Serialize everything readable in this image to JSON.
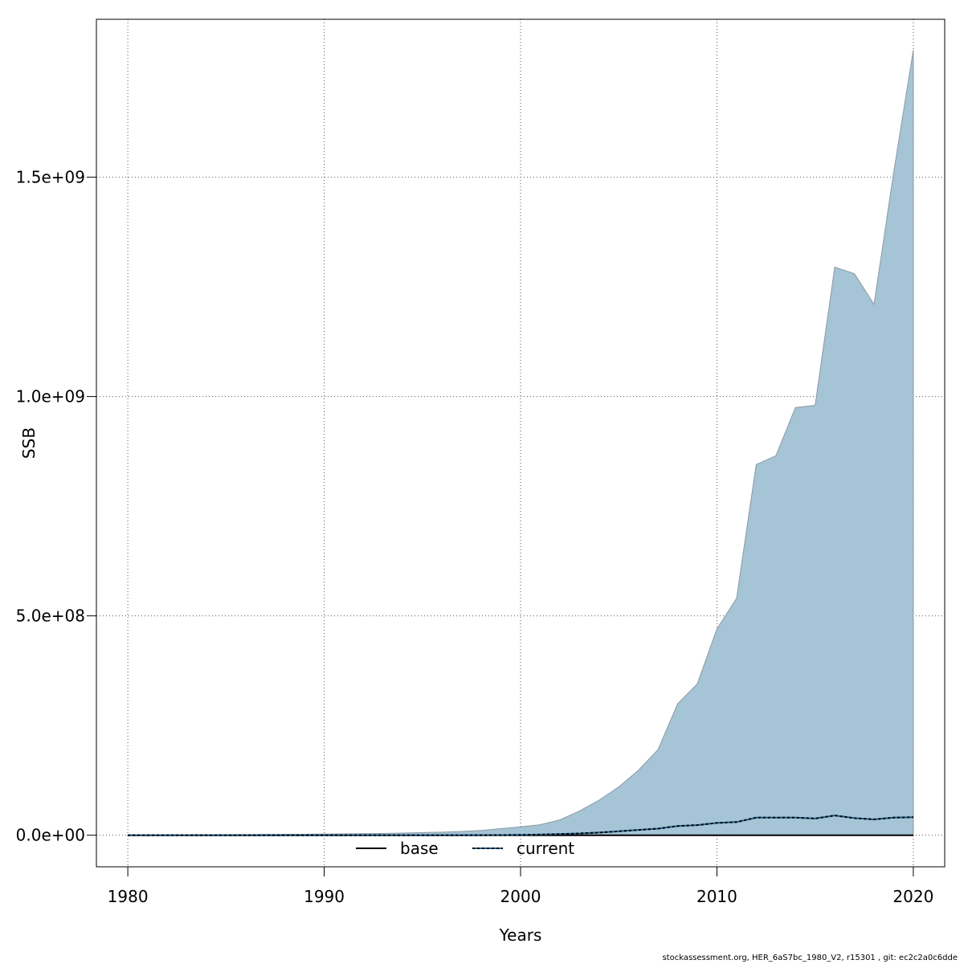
{
  "chart_data": {
    "type": "area",
    "title": "",
    "xlabel": "Years",
    "ylabel": "SSB",
    "xlim": [
      1978.4,
      2021.6
    ],
    "ylim": [
      -72000000,
      1860000000
    ],
    "x_ticks": [
      1980,
      1990,
      2000,
      2010,
      2020
    ],
    "x_tick_labels": [
      "1980",
      "1990",
      "2000",
      "2010",
      "2020"
    ],
    "y_ticks": [
      0,
      500000000,
      1000000000,
      1500000000
    ],
    "y_tick_labels": [
      "0.0e+00",
      "5.0e+08",
      "1.0e+09",
      "1.5e+09"
    ],
    "grid": true,
    "legend_position": "bottom",
    "legend": [
      {
        "name": "base",
        "line_style": "solid",
        "color": "#000000"
      },
      {
        "name": "current",
        "line_style": "dotted",
        "color": "#1f5f8b"
      }
    ],
    "x": [
      1980,
      1981,
      1982,
      1983,
      1984,
      1985,
      1986,
      1987,
      1988,
      1989,
      1990,
      1991,
      1992,
      1993,
      1994,
      1995,
      1996,
      1997,
      1998,
      1999,
      2000,
      2001,
      2002,
      2003,
      2004,
      2005,
      2006,
      2007,
      2008,
      2009,
      2010,
      2011,
      2012,
      2013,
      2014,
      2015,
      2016,
      2017,
      2018,
      2019,
      2020
    ],
    "series": [
      {
        "name": "base",
        "values": [
          0,
          0,
          0,
          0,
          0,
          0,
          0,
          0,
          0,
          0,
          0,
          0,
          0,
          0,
          0,
          0,
          0,
          0,
          0,
          0,
          0,
          0,
          0,
          0,
          0,
          0,
          0,
          0,
          0,
          0,
          0,
          0,
          0,
          0,
          0,
          0,
          0,
          0,
          0,
          0,
          0
        ]
      },
      {
        "name": "current",
        "values": [
          0,
          0,
          0,
          0,
          0,
          0,
          0,
          0,
          0,
          0,
          0,
          0,
          0,
          0,
          0,
          0,
          0,
          0,
          100000,
          300000,
          700000,
          1500000,
          2500000,
          4000000,
          6000000,
          9000000,
          12000000,
          15000000,
          21000000,
          23000000,
          28000000,
          30000000,
          40000000,
          40000000,
          40000000,
          38000000,
          45000000,
          39000000,
          36000000,
          40000000,
          41000000
        ]
      }
    ],
    "band": {
      "lower": [
        0,
        0,
        0,
        0,
        0,
        0,
        0,
        0,
        0,
        0,
        0,
        0,
        0,
        0,
        0,
        0,
        0,
        0,
        0,
        0,
        0,
        0,
        0,
        0,
        0,
        0,
        0,
        0,
        0,
        0,
        0,
        0,
        0,
        0,
        0,
        0,
        0,
        0,
        0,
        0,
        0
      ],
      "upper": [
        500000,
        600000,
        700000,
        800000,
        1000000,
        1200000,
        1400000,
        1600000,
        1900000,
        2200000,
        2500000,
        3000000,
        3500000,
        4000000,
        5000000,
        6000000,
        7000000,
        8500000,
        11000000,
        15000000,
        19000000,
        24000000,
        35000000,
        55000000,
        80000000,
        110000000,
        148000000,
        195000000,
        300000000,
        345000000,
        470000000,
        540000000,
        845000000,
        865000000,
        975000000,
        980000000,
        1295000000,
        1280000000,
        1210000000,
        1510000000,
        1790000000
      ],
      "fill_color": "#a5c4d6",
      "edge_color": "#8a9aa4"
    }
  },
  "footer": {
    "note": "stockassessment.org, HER_6aS7bc_1980_V2, r15301 , git: ec2c2a0c6dde"
  }
}
